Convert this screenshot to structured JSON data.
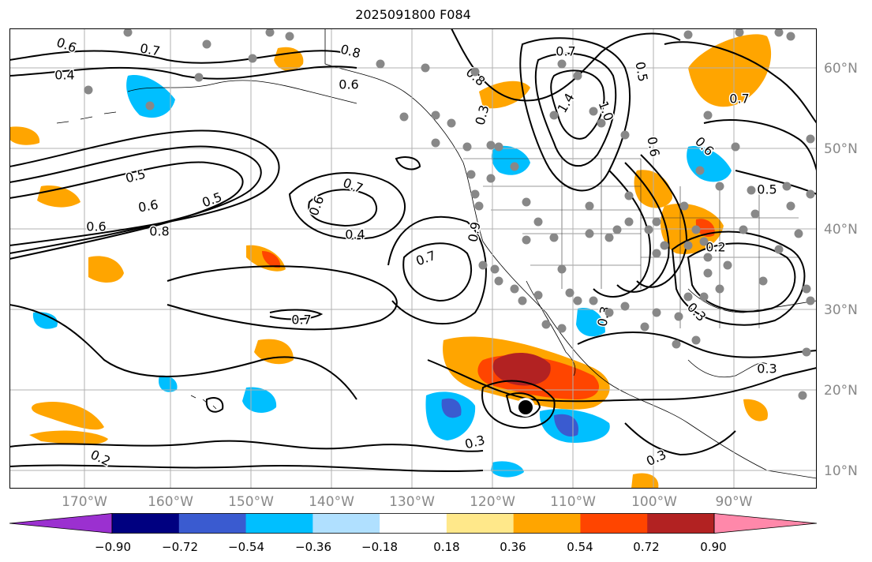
{
  "title": "2025091800 F084",
  "longitude_labels": [
    "170°W",
    "160°W",
    "150°W",
    "140°W",
    "130°W",
    "120°W",
    "110°W",
    "100°W",
    "90°W"
  ],
  "latitude_labels": [
    "60°N",
    "50°N",
    "40°N",
    "30°N",
    "20°N",
    "10°N"
  ],
  "contour_labels": [
    "0.6",
    "0.7",
    "0.4",
    "0.5",
    "0.6",
    "0.5",
    "0.8",
    "0.6",
    "0.7",
    "0.4",
    "0.8",
    "0.6",
    "0.7",
    "0.7",
    "0.3",
    "0.3",
    "0.3",
    "0.3",
    "0.2",
    "0.6",
    "0.7",
    "0.8",
    "1.4",
    "1.0",
    "0.5",
    "0.9",
    "0.6",
    "0.7",
    "0.6",
    "0.5",
    "0.2",
    "0.3",
    "0.3"
  ],
  "colorbar": {
    "tick_labels": [
      "−0.90",
      "−0.72",
      "−0.54",
      "−0.36",
      "−0.18",
      "0.18",
      "0.36",
      "0.54",
      "0.72",
      "0.90"
    ],
    "colors": [
      "#9b30d0",
      "#000080",
      "#3a5bd0",
      "#00bfff",
      "#b0e0ff",
      "#ffffff",
      "#ffe88a",
      "#ffa500",
      "#ff4500",
      "#b22222",
      "#ff88aa"
    ]
  },
  "colors": {
    "contour": "#000000",
    "grid": "#b0b0b0",
    "coast": "#000000",
    "station_dot": "#888888",
    "axis_label": "#888888"
  },
  "markers": {
    "station_dot_count": 95,
    "center_marker": "black-dot"
  }
}
